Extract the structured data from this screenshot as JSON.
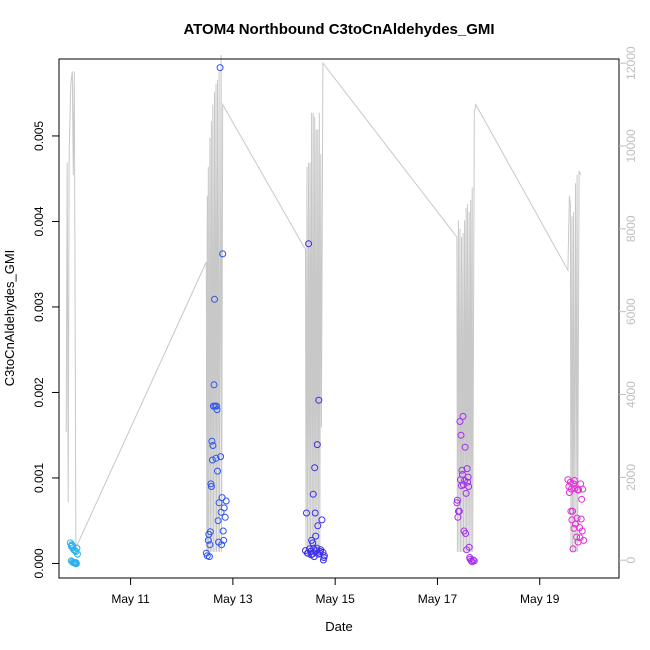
{
  "chart_data": {
    "type": "scatter",
    "title": "ATOM4 Northbound C3toCnAldehydes_GMI",
    "xlabel": "Date",
    "ylabel": "C3toCnAldehydes_GMI",
    "x_unit": "day of May (fractional)",
    "xlim": [
      9.6,
      20.55
    ],
    "ylim": [
      -0.00017,
      0.0059
    ],
    "y_ticks": [
      0.0,
      0.001,
      0.002,
      0.003,
      0.004,
      0.005
    ],
    "y_tick_labels": [
      "0.000",
      "0.001",
      "0.002",
      "0.003",
      "0.004",
      "0.005"
    ],
    "x_ticks": [
      11,
      13,
      15,
      17,
      19
    ],
    "x_tick_labels": [
      "May 11",
      "May 13",
      "May 15",
      "May 17",
      "May 19"
    ],
    "y2_ticks": [
      0,
      2000,
      4000,
      6000,
      8000,
      10000,
      12000
    ],
    "y2_tick_labels": [
      "0",
      "2000",
      "4000",
      "6000",
      "8000",
      "10000",
      "12000"
    ],
    "y2_lim": [
      -430,
      12100
    ],
    "grid": false,
    "legend": "none",
    "colors": {
      "flight_series": [
        "#29b2ef",
        "#2f54ef",
        "#3a2eef",
        "#a52ef0",
        "#e02fd7"
      ],
      "altitude_line": "#c8c8c8",
      "axis": "#000000",
      "secondary_axis": "#bebebe"
    },
    "series": [
      {
        "color": "#29b2ef",
        "points": [
          [
            9.82,
            0.00024
          ],
          [
            9.84,
            0.0002
          ],
          [
            9.85,
            0.00022
          ],
          [
            9.86,
            0.00021
          ],
          [
            9.87,
            0.00018
          ],
          [
            9.89,
            0.00016
          ],
          [
            9.91,
            0.00015
          ],
          [
            9.93,
            0.00014
          ],
          [
            9.95,
            0.00018
          ],
          [
            9.96,
            0.00011
          ],
          [
            9.84,
            3e-05
          ],
          [
            9.86,
            2e-05
          ],
          [
            9.88,
            1e-05
          ],
          [
            9.9,
            1e-05
          ],
          [
            9.91,
            1e-05
          ],
          [
            9.92,
            0.0
          ],
          [
            9.93,
            1e-05
          ],
          [
            9.94,
            0.0
          ]
        ]
      },
      {
        "color": "#2f54ef",
        "points": [
          [
            12.48,
            0.00012
          ],
          [
            12.5,
            9e-05
          ],
          [
            12.52,
            0.00027
          ],
          [
            12.53,
            0.00034
          ],
          [
            12.54,
            8e-05
          ],
          [
            12.55,
            0.00022
          ],
          [
            12.56,
            0.00037
          ],
          [
            12.57,
            0.00093
          ],
          [
            12.58,
            0.0009
          ],
          [
            12.59,
            0.00143
          ],
          [
            12.6,
            0.00121
          ],
          [
            12.61,
            0.00138
          ],
          [
            12.62,
            0.00184
          ],
          [
            12.63,
            0.00209
          ],
          [
            12.64,
            0.00309
          ],
          [
            12.65,
            0.00184
          ],
          [
            12.67,
            0.00123
          ],
          [
            12.68,
            0.00184
          ],
          [
            12.69,
            0.0018
          ],
          [
            12.7,
            0.00108
          ],
          [
            12.71,
            0.0005
          ],
          [
            12.72,
            0.00025
          ],
          [
            12.73,
            0.00071
          ],
          [
            12.75,
            0.0058
          ],
          [
            12.76,
            0.00125
          ],
          [
            12.77,
            0.0006
          ],
          [
            12.78,
            0.00022
          ],
          [
            12.79,
            0.00077
          ],
          [
            12.8,
            0.00362
          ],
          [
            12.81,
            0.00038
          ],
          [
            12.82,
            0.00027
          ],
          [
            12.83,
            0.00065
          ],
          [
            12.85,
            0.00054
          ],
          [
            12.87,
            0.00073
          ]
        ]
      },
      {
        "color": "#3a2eef",
        "points": [
          [
            14.42,
            0.00015
          ],
          [
            14.44,
            0.00059
          ],
          [
            14.46,
            0.00012
          ],
          [
            14.48,
            0.00374
          ],
          [
            14.5,
            0.00017
          ],
          [
            14.52,
            0.00014
          ],
          [
            14.54,
            0.00027
          ],
          [
            14.55,
            0.00011
          ],
          [
            14.56,
            0.00024
          ],
          [
            14.57,
            0.00081
          ],
          [
            14.58,
            0.00017
          ],
          [
            14.6,
            0.00112
          ],
          [
            14.61,
            0.00059
          ],
          [
            14.62,
            0.00032
          ],
          [
            14.63,
            0.00015
          ],
          [
            14.64,
            0.00018
          ],
          [
            14.65,
            0.00139
          ],
          [
            14.66,
            0.00044
          ],
          [
            14.68,
            0.00191
          ],
          [
            14.7,
            0.00012
          ],
          [
            14.72,
            0.00016
          ],
          [
            14.74,
            0.00051
          ],
          [
            14.76,
            0.00013
          ],
          [
            14.78,
            7e-05
          ],
          [
            14.79,
            9e-05
          ],
          [
            14.47,
            0.00012
          ],
          [
            14.53,
            0.0001
          ],
          [
            14.59,
            8e-05
          ],
          [
            14.67,
            0.00011
          ],
          [
            14.71,
            0.00014
          ],
          [
            14.77,
            4e-05
          ]
        ]
      },
      {
        "color": "#a52ef0",
        "points": [
          [
            17.38,
            0.00071
          ],
          [
            17.39,
            0.00074
          ],
          [
            17.4,
            0.00054
          ],
          [
            17.41,
            0.00061
          ],
          [
            17.43,
            0.00061
          ],
          [
            17.44,
            0.00166
          ],
          [
            17.45,
            0.00098
          ],
          [
            17.46,
            0.0015
          ],
          [
            17.47,
            0.00091
          ],
          [
            17.48,
            0.00109
          ],
          [
            17.5,
            0.00172
          ],
          [
            17.51,
            0.00092
          ],
          [
            17.52,
            0.00038
          ],
          [
            17.53,
            0.00097
          ],
          [
            17.54,
            0.00136
          ],
          [
            17.55,
            0.00035
          ],
          [
            17.56,
            0.00082
          ],
          [
            17.58,
            0.00111
          ],
          [
            17.59,
            0.00095
          ],
          [
            17.6,
            0.00101
          ],
          [
            17.61,
            0.0009
          ],
          [
            17.62,
            0.00019
          ],
          [
            17.64,
            5e-05
          ],
          [
            17.66,
            3e-05
          ],
          [
            17.68,
            2e-05
          ],
          [
            17.7,
            4e-05
          ],
          [
            17.72,
            3e-05
          ],
          [
            17.57,
            0.00016
          ],
          [
            17.63,
            7e-05
          ],
          [
            17.49,
            0.00104
          ]
        ]
      },
      {
        "color": "#e02fd7",
        "points": [
          [
            19.55,
            0.00098
          ],
          [
            19.57,
            0.0009
          ],
          [
            19.58,
            0.00083
          ],
          [
            19.6,
            0.00095
          ],
          [
            19.62,
            0.00087
          ],
          [
            19.63,
            0.00051
          ],
          [
            19.64,
            0.00061
          ],
          [
            19.65,
            0.00017
          ],
          [
            19.66,
            0.00093
          ],
          [
            19.68,
            0.00097
          ],
          [
            19.69,
            0.00088
          ],
          [
            19.7,
            0.00046
          ],
          [
            19.72,
            0.00031
          ],
          [
            19.73,
            0.00053
          ],
          [
            19.74,
            0.00086
          ],
          [
            19.76,
            0.00086
          ],
          [
            19.78,
            0.00042
          ],
          [
            19.79,
            0.0003
          ],
          [
            19.8,
            0.00093
          ],
          [
            19.81,
            0.00052
          ],
          [
            19.82,
            0.00075
          ],
          [
            19.84,
            0.00087
          ],
          [
            19.86,
            0.00027
          ],
          [
            19.61,
            0.00061
          ],
          [
            19.67,
            0.00041
          ],
          [
            19.75,
            0.00025
          ],
          [
            19.83,
            0.00038
          ]
        ]
      }
    ],
    "altitude_line": {
      "axis": "right",
      "points": [
        [
          9.74,
          3100
        ],
        [
          9.76,
          9600
        ],
        [
          9.78,
          1400
        ],
        [
          9.8,
          9900
        ],
        [
          9.83,
          11500
        ],
        [
          9.86,
          11800
        ],
        [
          9.88,
          9300
        ],
        [
          9.9,
          11800
        ],
        [
          9.93,
          300
        ],
        [
          12.48,
          7200
        ],
        [
          12.49,
          200
        ],
        [
          12.5,
          8800
        ],
        [
          12.51,
          200
        ],
        [
          12.52,
          9500
        ],
        [
          12.53,
          200
        ],
        [
          12.55,
          10200
        ],
        [
          12.56,
          200
        ],
        [
          12.58,
          10600
        ],
        [
          12.59,
          200
        ],
        [
          12.61,
          11000
        ],
        [
          12.62,
          200
        ],
        [
          12.64,
          11300
        ],
        [
          12.65,
          200
        ],
        [
          12.67,
          11500
        ],
        [
          12.68,
          200
        ],
        [
          12.7,
          11600
        ],
        [
          12.71,
          200
        ],
        [
          12.73,
          11800
        ],
        [
          12.74,
          200
        ],
        [
          12.77,
          12200
        ],
        [
          12.78,
          200
        ],
        [
          12.8,
          11000
        ],
        [
          14.42,
          7500
        ],
        [
          14.43,
          200
        ],
        [
          14.45,
          9500
        ],
        [
          14.46,
          200
        ],
        [
          14.48,
          9600
        ],
        [
          14.49,
          200
        ],
        [
          14.51,
          9600
        ],
        [
          14.52,
          200
        ],
        [
          14.54,
          10800
        ],
        [
          14.55,
          200
        ],
        [
          14.57,
          10800
        ],
        [
          14.58,
          200
        ],
        [
          14.6,
          10700
        ],
        [
          14.61,
          200
        ],
        [
          14.63,
          10400
        ],
        [
          14.64,
          200
        ],
        [
          14.66,
          10400
        ],
        [
          14.67,
          200
        ],
        [
          14.69,
          10800
        ],
        [
          14.7,
          200
        ],
        [
          14.72,
          9800
        ],
        [
          14.73,
          3200
        ],
        [
          14.76,
          12000
        ],
        [
          17.38,
          7800
        ],
        [
          17.39,
          200
        ],
        [
          17.41,
          8200
        ],
        [
          17.42,
          200
        ],
        [
          17.44,
          8000
        ],
        [
          17.45,
          200
        ],
        [
          17.47,
          7800
        ],
        [
          17.48,
          200
        ],
        [
          17.5,
          7900
        ],
        [
          17.51,
          200
        ],
        [
          17.53,
          8200
        ],
        [
          17.54,
          200
        ],
        [
          17.56,
          8500
        ],
        [
          17.57,
          200
        ],
        [
          17.59,
          8600
        ],
        [
          17.6,
          200
        ],
        [
          17.62,
          8400
        ],
        [
          17.63,
          200
        ],
        [
          17.65,
          8700
        ],
        [
          17.66,
          200
        ],
        [
          17.68,
          9000
        ],
        [
          17.69,
          200
        ],
        [
          17.72,
          10800
        ],
        [
          17.75,
          11000
        ],
        [
          19.55,
          7000
        ],
        [
          19.58,
          8800
        ],
        [
          19.6,
          8600
        ],
        [
          19.61,
          200
        ],
        [
          19.63,
          8300
        ],
        [
          19.64,
          200
        ],
        [
          19.66,
          8400
        ],
        [
          19.67,
          200
        ],
        [
          19.7,
          9100
        ],
        [
          19.71,
          200
        ],
        [
          19.73,
          9300
        ],
        [
          19.74,
          200
        ],
        [
          19.77,
          9400
        ],
        [
          19.8,
          9300
        ]
      ]
    }
  }
}
